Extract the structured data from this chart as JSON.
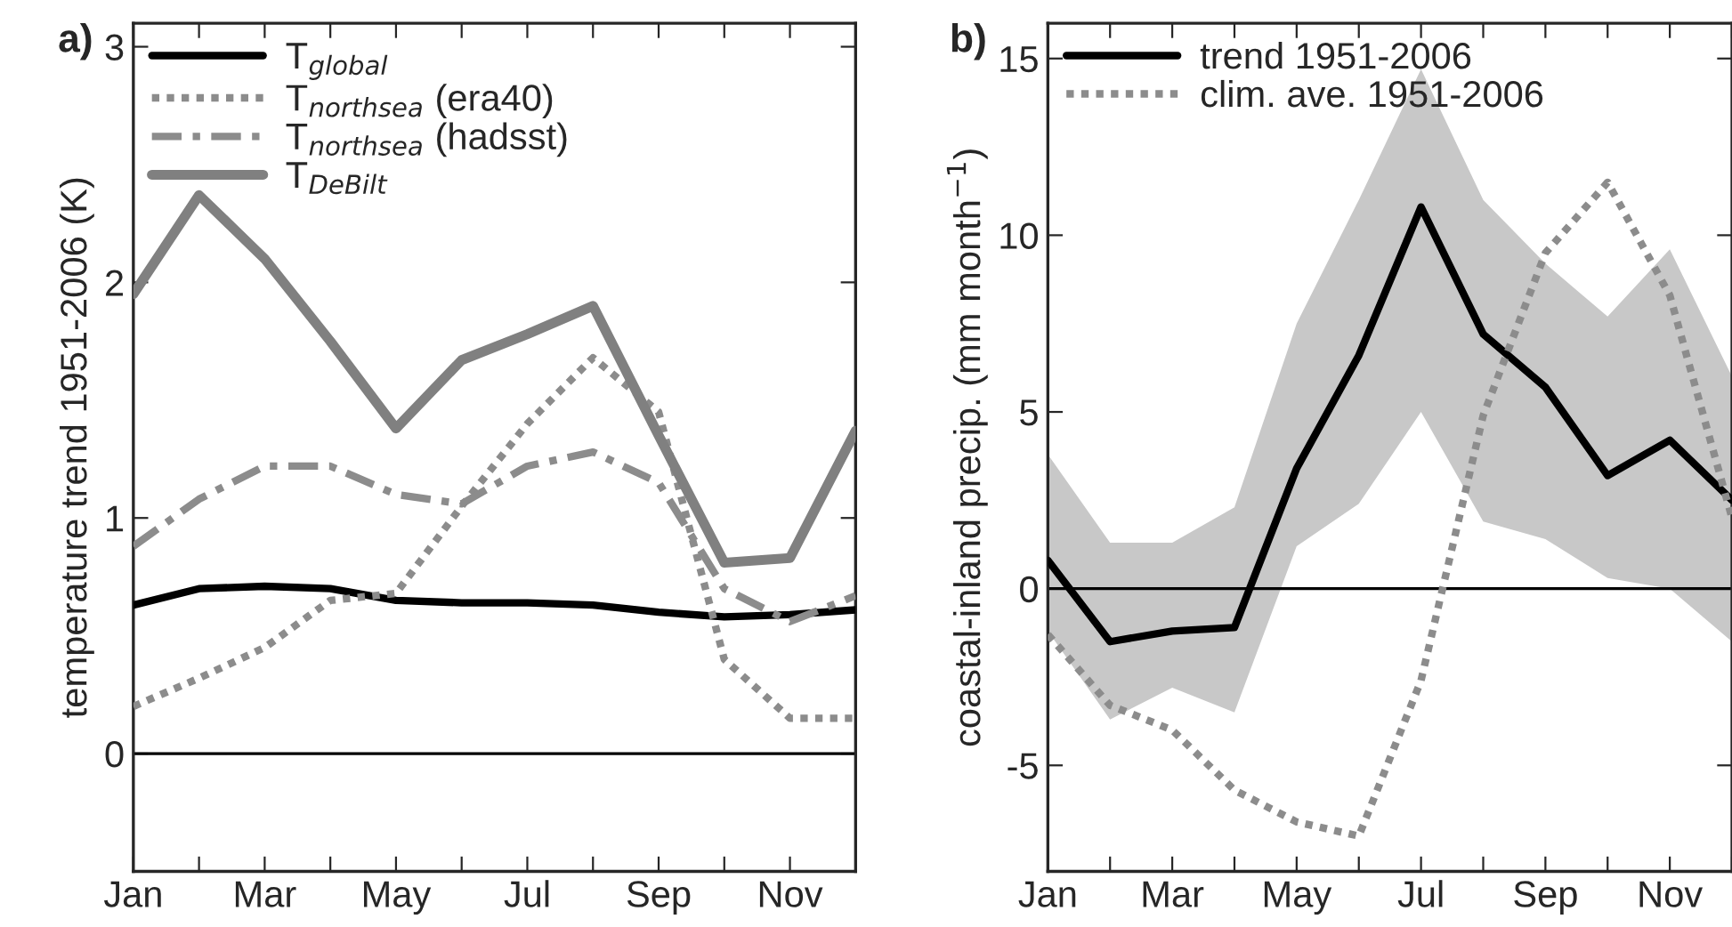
{
  "chart_data": [
    {
      "type": "line",
      "ylabel": "temperature trend 1951-2006 (K)",
      "annotations": [
        "a)"
      ],
      "categories": [
        "Jan",
        null,
        "Mar",
        null,
        "May",
        null,
        "Jul",
        null,
        "Sep",
        null,
        "Nov",
        null
      ],
      "ylim": [
        -0.5,
        3.1
      ],
      "yticks": [
        0,
        1,
        2,
        3
      ],
      "grid": false,
      "legend": "top left",
      "ref_lines": [
        {
          "axis": "y",
          "value": 0,
          "color": "#000000"
        }
      ],
      "series": [
        {
          "name": "T$_{global}$",
          "color": "#000000",
          "line_style": "solid",
          "values": [
            0.63,
            0.7,
            0.71,
            0.7,
            0.65,
            0.64,
            0.64,
            0.63,
            0.6,
            0.58,
            0.59,
            0.61
          ]
        },
        {
          "name": "T$_{northsea}$ (era40)",
          "color": "#8c8c8c",
          "line_style": "dotted",
          "values": [
            0.2,
            0.32,
            0.45,
            0.65,
            0.68,
            1.05,
            1.4,
            1.68,
            1.45,
            0.4,
            0.15,
            0.15
          ]
        },
        {
          "name": "T$_{northsea}$ (hadsst)",
          "color": "#8c8c8c",
          "line_style": "dashdot",
          "values": [
            0.88,
            1.08,
            1.22,
            1.22,
            1.1,
            1.06,
            1.22,
            1.28,
            1.15,
            0.7,
            0.56,
            0.67
          ]
        },
        {
          "name": "T$_{DeBilt}$",
          "color": "#808080",
          "line_style": "solid",
          "values": [
            1.95,
            2.37,
            2.1,
            1.75,
            1.38,
            1.67,
            1.78,
            1.9,
            1.35,
            0.81,
            0.83,
            1.37
          ]
        }
      ]
    },
    {
      "type": "line",
      "ylabel": "coastal-inland precip. (mm month$^{−1}$)",
      "annotations": [
        "b)"
      ],
      "categories": [
        "Jan",
        null,
        "Mar",
        null,
        "May",
        null,
        "Jul",
        null,
        "Sep",
        null,
        "Nov",
        null
      ],
      "ylim": [
        -8,
        16
      ],
      "yticks": [
        -5,
        0,
        5,
        10,
        15
      ],
      "grid": false,
      "legend": "top left",
      "ref_lines": [
        {
          "axis": "y",
          "value": 0,
          "color": "#000000"
        }
      ],
      "series": [
        {
          "name": "trend 1951-2006",
          "color": "#000000",
          "line_style": "solid",
          "values": [
            0.8,
            -1.5,
            -1.2,
            -1.1,
            3.4,
            6.6,
            10.8,
            7.2,
            5.7,
            3.2,
            4.2,
            2.5
          ],
          "lower": [
            -1.2,
            -3.7,
            -2.8,
            -3.5,
            1.2,
            2.4,
            5.0,
            1.9,
            1.4,
            0.3,
            0.0,
            -1.5
          ],
          "upper": [
            3.8,
            1.3,
            1.3,
            2.3,
            7.5,
            11.0,
            14.7,
            11.0,
            9.2,
            7.7,
            9.6,
            6.0
          ]
        },
        {
          "name": "clim. ave. 1951-2006",
          "color": "#8c8c8c",
          "line_style": "dotted",
          "values": [
            -1.3,
            -3.3,
            -4.0,
            -5.7,
            -6.6,
            -7.0,
            -2.6,
            4.9,
            9.5,
            11.5,
            8.3,
            2.0
          ]
        }
      ]
    }
  ]
}
